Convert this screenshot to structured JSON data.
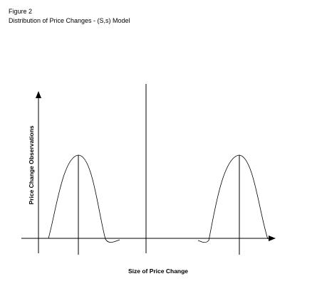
{
  "header": {
    "figure": "Figure 2",
    "title": "Distribution of Price Changes - (S,s) Model"
  },
  "axes": {
    "y_label": "Price Change Observations",
    "x_label": "Size of Price Change"
  }
}
